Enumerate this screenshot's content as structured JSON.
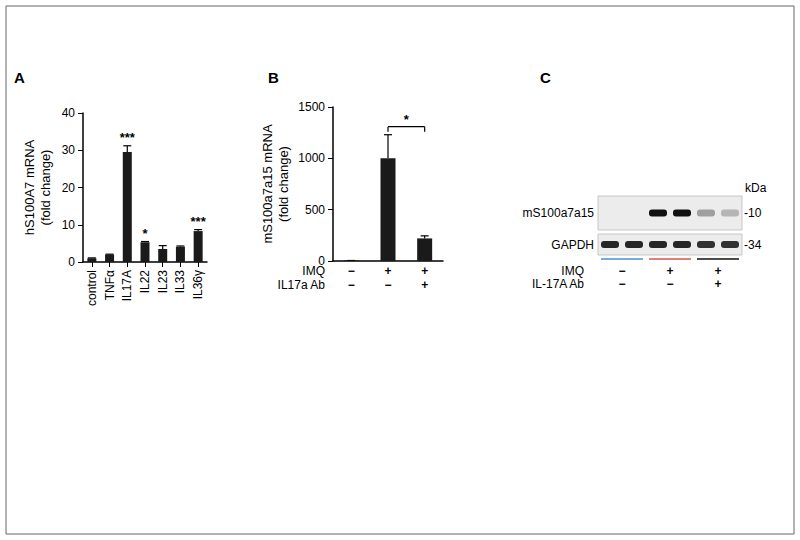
{
  "chart_data": [
    {
      "type": "bar",
      "title": "A",
      "y_label": "hS100A7 mRNA\n(fold change)",
      "categories": [
        "control",
        "TNFα",
        "IL17A",
        "IL22",
        "IL23",
        "IL33",
        "IL36γ"
      ],
      "values": [
        1,
        2,
        29.5,
        5.3,
        3.5,
        4.1,
        8.3
      ],
      "errors": [
        0.1,
        0.1,
        1.7,
        0.2,
        0.9,
        0.2,
        0.4
      ],
      "color": "#1a1a1a",
      "ylim": [
        0,
        40
      ],
      "yticks": [
        0,
        10,
        20,
        30,
        40
      ],
      "grid": false,
      "annotations": [
        {
          "category": "IL17A",
          "text": "***"
        },
        {
          "category": "IL22",
          "text": "*"
        },
        {
          "category": "IL36γ",
          "text": "***"
        }
      ]
    },
    {
      "type": "bar",
      "title": "B",
      "y_label": "mS100a7a15 mRNA\n(fold change)",
      "categories": [
        null,
        null,
        null
      ],
      "values": [
        5,
        1000,
        220
      ],
      "errors": [
        0,
        230,
        25
      ],
      "color": "#1a1a1a",
      "ylim": [
        0,
        1500
      ],
      "yticks": [
        0,
        500,
        1000,
        1500
      ],
      "grid": false,
      "tick_labels": "y",
      "conditions": [
        {
          "label": "IMQ",
          "marks": [
            "−",
            "+",
            "+"
          ]
        },
        {
          "label": "IL17a Ab",
          "marks": [
            "−",
            "−",
            "+"
          ]
        }
      ],
      "annotations": [
        {
          "between": [
            1,
            2
          ],
          "text": "*"
        }
      ]
    }
  ],
  "panel_c": {
    "title": "C",
    "unit": "kDa",
    "blot_rows": [
      {
        "label": "mS100a7a15",
        "size_label": "-10",
        "intensity": [
          0,
          0,
          1,
          1,
          0.35,
          0.25
        ]
      },
      {
        "label": "GAPDH",
        "size_label": "-34",
        "intensity": [
          0.9,
          0.9,
          0.9,
          0.9,
          0.85,
          0.85
        ]
      }
    ],
    "group_colors": [
      "#4a8fd6",
      "#d9534f",
      "#111111"
    ],
    "conditions": [
      {
        "label": "IMQ",
        "marks": [
          "−",
          "+",
          "+"
        ]
      },
      {
        "label": "IL-17A Ab",
        "marks": [
          "−",
          "−",
          "+"
        ]
      }
    ]
  }
}
